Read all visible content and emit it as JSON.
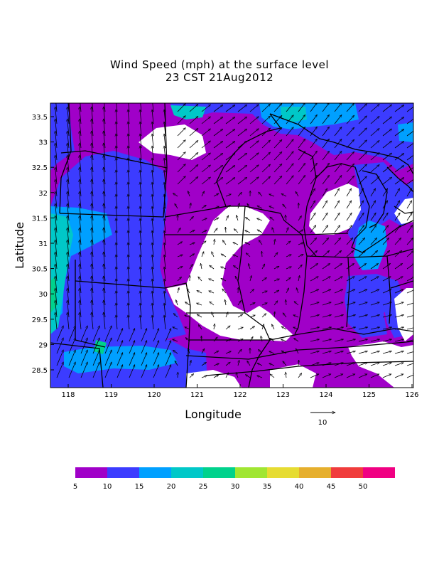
{
  "title": {
    "line1": "Wind Speed (mph) at the surface level",
    "line2": "23 CST 21Aug2012"
  },
  "chart_data": {
    "type": "heatmap",
    "xlabel": "Longitude",
    "ylabel": "Latitude",
    "x_ticks": [
      "118",
      "119",
      "120",
      "121",
      "122",
      "123",
      "124",
      "125",
      "126"
    ],
    "y_ticks": [
      "33.5",
      "33",
      "32.5",
      "32",
      "31.5",
      "31",
      "30.5",
      "30",
      "29.5",
      "29",
      "28.5"
    ],
    "reference_vector": {
      "label": "10"
    },
    "colorbar": {
      "labels": [
        "5",
        "10",
        "15",
        "20",
        "25",
        "30",
        "35",
        "40",
        "45",
        "50"
      ],
      "colors": [
        "#a000c8",
        "#3c3cff",
        "#00a0ff",
        "#00c8c8",
        "#00d28c",
        "#a0e632",
        "#e6dc32",
        "#e6af2d",
        "#f03c3c",
        "#f00082"
      ]
    },
    "field_colors": {
      "below_5": "#ffffff",
      "5_10": "#a000c8",
      "10_15": "#3c3cff",
      "15_20": "#00a0ff",
      "20_25": "#00c8c8",
      "25_30": "#00d28c"
    }
  }
}
